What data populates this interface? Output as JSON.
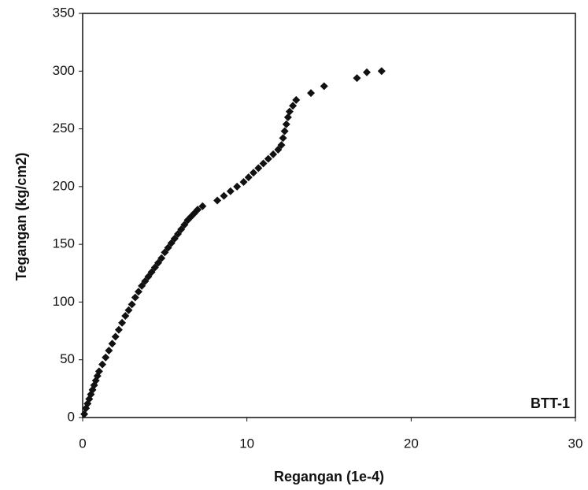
{
  "chart_data": {
    "type": "scatter",
    "x_label": "Regangan (1e-4)",
    "y_label": "Tegangan (kg/cm2)",
    "annotation": "BTT-1",
    "color": "#111111",
    "x": [
      0.1,
      0.2,
      0.3,
      0.4,
      0.5,
      0.6,
      0.7,
      0.8,
      0.9,
      1.0,
      1.2,
      1.4,
      1.6,
      1.8,
      2.0,
      2.2,
      2.4,
      2.6,
      2.8,
      3.0,
      3.2,
      3.4,
      3.6,
      3.8,
      4.0,
      4.2,
      4.4,
      4.6,
      4.8,
      5.0,
      5.2,
      5.4,
      5.6,
      5.8,
      6.0,
      6.2,
      6.4,
      6.6,
      6.8,
      7.0,
      7.3,
      8.2,
      8.6,
      9.0,
      9.4,
      9.8,
      10.1,
      10.4,
      10.7,
      11.0,
      11.3,
      11.6,
      11.9,
      12.1,
      12.2,
      12.3,
      12.4,
      12.5,
      12.6,
      12.8,
      13.0,
      13.9,
      14.7,
      16.7,
      17.3,
      18.2
    ],
    "values": [
      3,
      8,
      12,
      16,
      20,
      24,
      28,
      32,
      36,
      40,
      46,
      52,
      58,
      64,
      70,
      76,
      82,
      88,
      93,
      98,
      104,
      109,
      114,
      118,
      122,
      126,
      130,
      134,
      138,
      143,
      147,
      151,
      155,
      159,
      163,
      167,
      171,
      174,
      177,
      180,
      183,
      188,
      192,
      196,
      200,
      204,
      208,
      212,
      216,
      220,
      224,
      228,
      232,
      236,
      242,
      248,
      254,
      260,
      265,
      270,
      275,
      281,
      287,
      294,
      299,
      300
    ],
    "xlim": [
      0,
      30
    ],
    "xticks": [
      0,
      10,
      20,
      30
    ],
    "ylim": [
      0,
      350
    ],
    "yticks": [
      0,
      50,
      100,
      150,
      200,
      250,
      300,
      350
    ]
  }
}
